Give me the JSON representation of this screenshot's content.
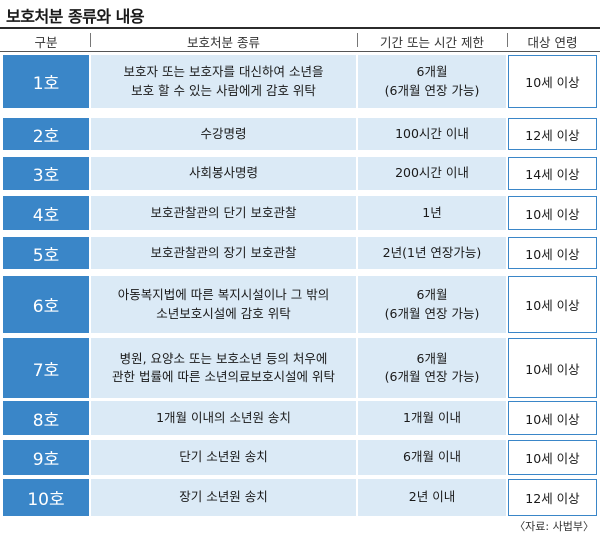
{
  "title": "보호처분 종류와 내용",
  "headers": {
    "no": "구분",
    "type": "보호처분 종류",
    "duration": "기간 또는 시간 제한",
    "age": "대상 연령"
  },
  "rows": [
    {
      "no": "1호",
      "type": [
        "보호자 또는 보호자를 대신하여 소년을",
        "보호 할 수 있는 사람에게 감호 위탁"
      ],
      "duration": [
        "6개월",
        "(6개월 연장 가능)"
      ],
      "age": "10세 이상"
    },
    {
      "no": "2호",
      "type": [
        "수강명령"
      ],
      "duration": [
        "100시간 이내"
      ],
      "age": "12세 이상"
    },
    {
      "no": "3호",
      "type": [
        "사회봉사명령"
      ],
      "duration": [
        "200시간 이내"
      ],
      "age": "14세 이상"
    },
    {
      "no": "4호",
      "type": [
        "보호관찰관의 단기 보호관찰"
      ],
      "duration": [
        "1년"
      ],
      "age": "10세 이상"
    },
    {
      "no": "5호",
      "type": [
        "보호관찰관의 장기 보호관찰"
      ],
      "duration": [
        "2년(1년 연장가능)"
      ],
      "age": "10세 이상"
    },
    {
      "no": "6호",
      "type": [
        "아동복지법에 따른 복지시설이나 그 밖의",
        "소년보호시설에 감호 위탁"
      ],
      "duration": [
        "6개월",
        "(6개월 연장 가능)"
      ],
      "age": "10세 이상"
    },
    {
      "no": "7호",
      "type": [
        "병원, 요양소 또는 보호소년 등의 처우에",
        "관한 법률에 따른 소년의료보호시설에 위탁"
      ],
      "duration": [
        "6개월",
        "(6개월 연장 가능)"
      ],
      "age": "10세 이상"
    },
    {
      "no": "8호",
      "type": [
        "1개월 이내의 소년원 송치"
      ],
      "duration": [
        "1개월 이내"
      ],
      "age": "10세 이상"
    },
    {
      "no": "9호",
      "type": [
        "단기 소년원 송치"
      ],
      "duration": [
        "6개월 이내"
      ],
      "age": "10세 이상"
    },
    {
      "no": "10호",
      "type": [
        "장기 소년원 송치"
      ],
      "duration": [
        "2년 이내"
      ],
      "age": "12세 이상"
    }
  ],
  "source": "〈자료: 사법부〉",
  "colors": {
    "accent": "#3a86c8",
    "cell_fill": "#dbeaf6"
  }
}
